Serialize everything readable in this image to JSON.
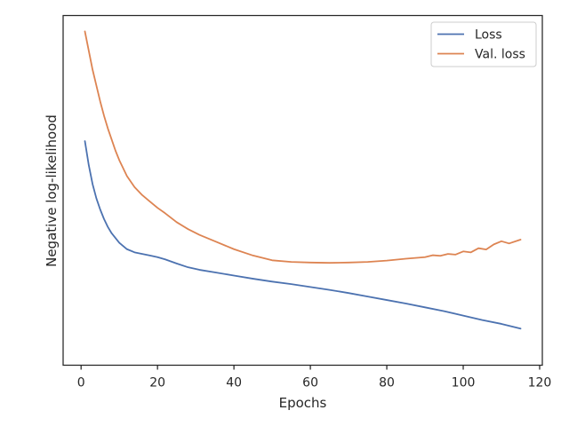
{
  "chart_data": {
    "type": "line",
    "title": "",
    "xlabel": "Epochs",
    "ylabel": "Negative log-likelihood",
    "xlim": [
      -4.7,
      120.7
    ],
    "ylim": [
      -0.05,
      1.05
    ],
    "y_tick_labels_shown": false,
    "x_ticks": [
      0,
      20,
      40,
      60,
      80,
      100,
      120
    ],
    "grid": false,
    "legend_position": "top-right",
    "series": [
      {
        "name": "Loss",
        "color": "#4c72b0",
        "x": [
          1,
          2,
          3,
          4,
          5,
          6,
          7,
          8,
          9,
          10,
          12,
          14,
          16,
          18,
          20,
          22,
          25,
          28,
          31,
          35,
          40,
          45,
          50,
          55,
          60,
          65,
          70,
          75,
          80,
          85,
          90,
          95,
          100,
          105,
          110,
          115
        ],
        "y": [
          0.655,
          0.58,
          0.52,
          0.475,
          0.44,
          0.41,
          0.385,
          0.365,
          0.35,
          0.335,
          0.315,
          0.305,
          0.3,
          0.295,
          0.29,
          0.283,
          0.27,
          0.258,
          0.25,
          0.242,
          0.232,
          0.222,
          0.213,
          0.205,
          0.196,
          0.187,
          0.177,
          0.166,
          0.155,
          0.144,
          0.132,
          0.12,
          0.106,
          0.092,
          0.08,
          0.065
        ]
      },
      {
        "name": "Val. loss",
        "color": "#dd8452",
        "x": [
          1,
          2,
          3,
          4,
          5,
          6,
          7,
          8,
          9,
          10,
          12,
          14,
          16,
          18,
          20,
          22,
          25,
          28,
          31,
          35,
          40,
          45,
          50,
          55,
          60,
          65,
          70,
          75,
          80,
          85,
          90,
          92,
          94,
          96,
          98,
          100,
          102,
          104,
          106,
          108,
          110,
          112,
          115
        ],
        "y": [
          1.0,
          0.94,
          0.88,
          0.83,
          0.78,
          0.735,
          0.695,
          0.66,
          0.625,
          0.595,
          0.545,
          0.51,
          0.485,
          0.465,
          0.445,
          0.428,
          0.4,
          0.378,
          0.36,
          0.34,
          0.315,
          0.295,
          0.28,
          0.275,
          0.273,
          0.272,
          0.273,
          0.275,
          0.279,
          0.285,
          0.29,
          0.296,
          0.294,
          0.3,
          0.298,
          0.308,
          0.305,
          0.318,
          0.314,
          0.33,
          0.34,
          0.333,
          0.345
        ]
      }
    ]
  }
}
